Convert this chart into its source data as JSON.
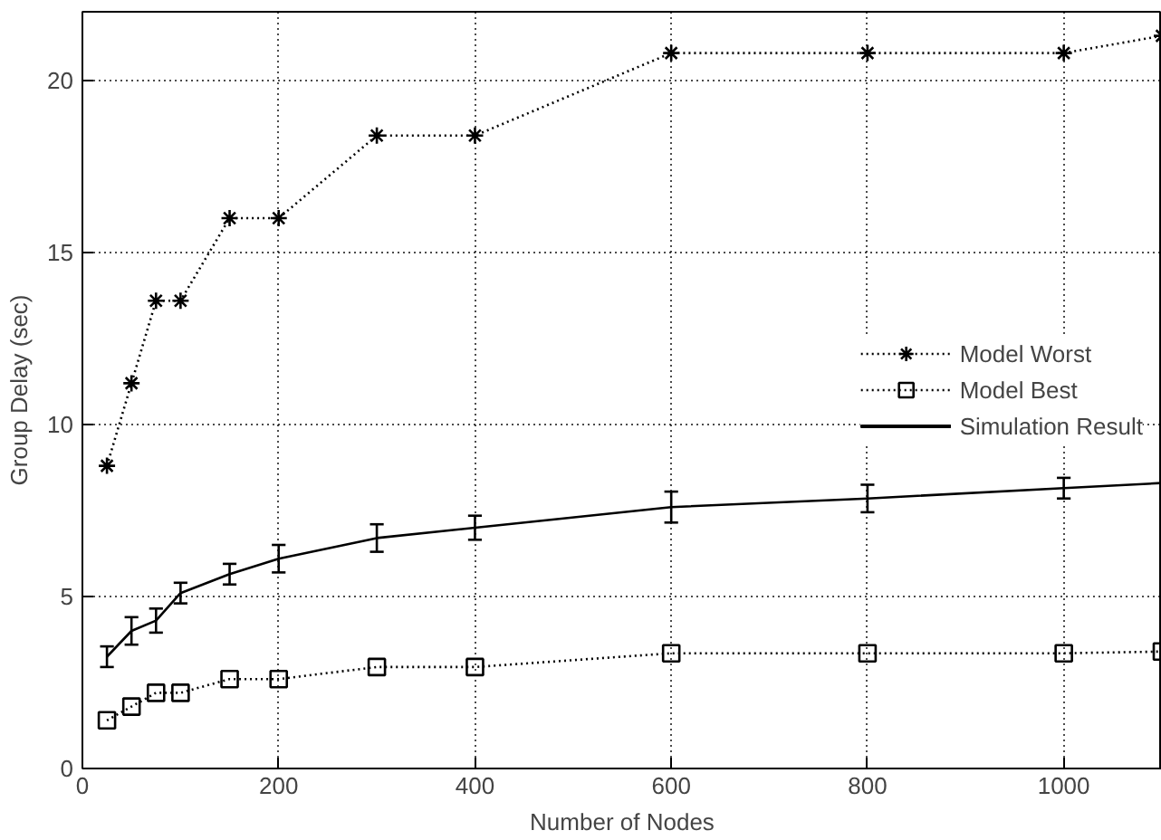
{
  "chart_data": {
    "type": "line",
    "xlabel": "Number of Nodes",
    "ylabel": "Group Delay (sec)",
    "xlim": [
      0,
      1100
    ],
    "ylim": [
      0,
      22
    ],
    "xticks": [
      0,
      200,
      400,
      600,
      800,
      1000
    ],
    "yticks": [
      0,
      5,
      10,
      15,
      20
    ],
    "grid": true,
    "legend": "right",
    "x": [
      25,
      50,
      75,
      100,
      150,
      200,
      300,
      400,
      600,
      800,
      1000,
      1100
    ],
    "series": [
      {
        "name": "Model Worst",
        "color": "#000000",
        "marker": "cross",
        "line_style": "dotted",
        "values": [
          8.8,
          11.2,
          13.6,
          13.6,
          16.0,
          16.0,
          18.4,
          18.4,
          20.8,
          20.8,
          20.8,
          21.3
        ]
      },
      {
        "name": "Model Best",
        "color": "#000000",
        "marker": "square",
        "line_style": "dotted",
        "values": [
          1.4,
          1.8,
          2.2,
          2.2,
          2.6,
          2.6,
          2.95,
          2.95,
          3.35,
          3.35,
          3.35,
          3.4
        ]
      },
      {
        "name": "Simulation Result",
        "color": "#000000",
        "marker": "none",
        "line_style": "solid",
        "values": [
          3.25,
          4.0,
          4.3,
          5.1,
          5.65,
          6.1,
          6.7,
          7.0,
          7.6,
          7.85,
          8.15,
          8.3
        ],
        "errors": [
          0.3,
          0.4,
          0.35,
          0.3,
          0.3,
          0.4,
          0.4,
          0.35,
          0.45,
          0.4,
          0.3,
          null
        ]
      }
    ]
  }
}
